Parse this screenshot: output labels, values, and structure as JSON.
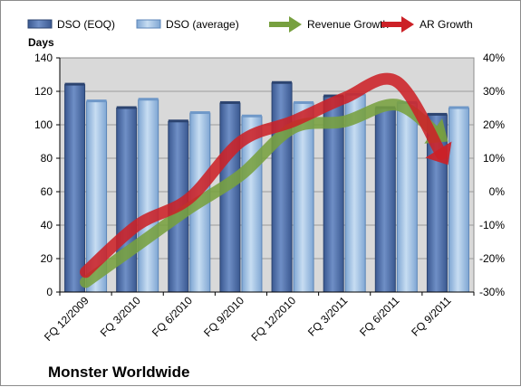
{
  "chart_data": {
    "type": "bar",
    "title": "Monster Worldwide",
    "categories": [
      "FQ 12/2009",
      "FQ 3/2010",
      "FQ 6/2010",
      "FQ 9/2010",
      "FQ 12/2010",
      "FQ 3/2011",
      "FQ 6/2011",
      "FQ 9/2011"
    ],
    "ylabel": "Days",
    "ylim": [
      0,
      140
    ],
    "yticks": [
      "0",
      "20",
      "40",
      "60",
      "80",
      "100",
      "120",
      "140"
    ],
    "y2lim": [
      -30,
      40
    ],
    "y2ticks": [
      "-30%",
      "-20%",
      "-10%",
      "0%",
      "10%",
      "20%",
      "30%",
      "40%"
    ],
    "grid": true,
    "legend_position": "top",
    "series": [
      {
        "name": "DSO (EOQ)",
        "kind": "bar",
        "axis": "left",
        "color": "#4f6fa8",
        "values": [
          124,
          110,
          102,
          113,
          125,
          117,
          110,
          106
        ]
      },
      {
        "name": "DSO (average)",
        "kind": "bar",
        "axis": "left",
        "color": "#9dc0e4",
        "values": [
          114,
          115,
          107,
          105,
          113,
          118,
          113,
          110
        ]
      },
      {
        "name": "Revenue Growth",
        "kind": "arrow",
        "axis": "right",
        "color": "#77a03f",
        "values": [
          -27,
          -16,
          -5,
          5,
          19,
          21,
          26,
          15
        ]
      },
      {
        "name": "AR Growth",
        "kind": "arrow",
        "axis": "right",
        "color": "#cc2127",
        "values": [
          -24,
          -10,
          -2,
          15,
          21,
          28,
          33,
          8
        ]
      }
    ]
  }
}
